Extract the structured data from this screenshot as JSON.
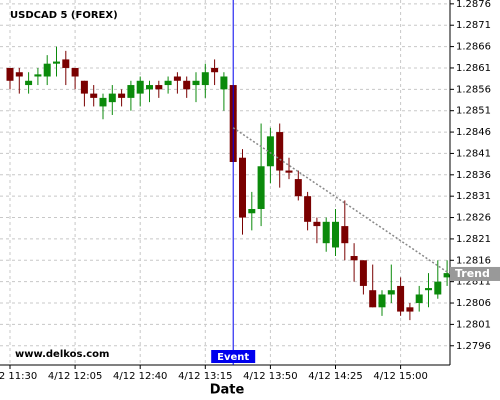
{
  "chart_data": {
    "type": "candlestick",
    "title": "USDCAD 5 (FOREX)",
    "watermark": "www.delkos.com",
    "x_label": "Date",
    "categories": [
      "4/12 11:30",
      null,
      null,
      null,
      null,
      null,
      null,
      "4/12 12:05",
      null,
      null,
      null,
      null,
      null,
      null,
      "4/12 12:40",
      null,
      null,
      null,
      null,
      null,
      null,
      "4/12 13:15",
      null,
      null,
      null,
      null,
      null,
      null,
      "4/12 13:50",
      null,
      null,
      null,
      null,
      null,
      null,
      "4/12 14:25",
      null,
      null,
      null,
      null,
      null,
      null,
      "4/12 15:00",
      null,
      null,
      null,
      null,
      null
    ],
    "open": [
      1.2861,
      1.286,
      1.2857,
      1.2859,
      1.2859,
      1.2862,
      1.2863,
      1.2861,
      1.2858,
      1.2855,
      1.2852,
      1.2853,
      1.2855,
      1.2854,
      1.2855,
      1.2856,
      1.2857,
      1.2857,
      1.2859,
      1.2858,
      1.2857,
      1.2857,
      1.2861,
      1.2856,
      1.2857,
      1.284,
      1.2827,
      1.2828,
      1.2838,
      1.2846,
      1.2837,
      1.2835,
      1.2831,
      1.2825,
      1.282,
      1.2819,
      1.2824,
      1.2817,
      1.2816,
      1.2809,
      1.2805,
      1.2808,
      1.281,
      1.2805,
      1.2806,
      1.2809,
      1.2808,
      1.2812
    ],
    "high": [
      1.2861,
      1.2861,
      1.286,
      1.2861,
      1.2864,
      1.2866,
      1.2865,
      1.2861,
      1.2858,
      1.2857,
      1.2855,
      1.2857,
      1.2856,
      1.2858,
      1.2859,
      1.2858,
      1.2858,
      1.2859,
      1.286,
      1.2859,
      1.286,
      1.2862,
      1.2863,
      1.286,
      1.2857,
      1.2842,
      1.2832,
      1.2848,
      1.2847,
      1.2848,
      1.284,
      1.2837,
      1.2832,
      1.2826,
      1.2826,
      1.2828,
      1.283,
      1.282,
      1.2816,
      1.2815,
      1.2809,
      1.2815,
      1.2812,
      1.2806,
      1.281,
      1.2813,
      1.2816,
      1.2816
    ],
    "low": [
      1.2856,
      1.2855,
      1.2855,
      1.2857,
      1.2857,
      1.2859,
      1.2857,
      1.2856,
      1.2852,
      1.2852,
      1.2849,
      1.285,
      1.2852,
      1.2851,
      1.2852,
      1.2853,
      1.2854,
      1.2855,
      1.2855,
      1.2854,
      1.2853,
      1.2854,
      1.2857,
      1.2851,
      1.2839,
      1.2822,
      1.2823,
      1.2824,
      1.2834,
      1.2833,
      1.2835,
      1.283,
      1.2823,
      1.282,
      1.2818,
      1.2817,
      1.2816,
      1.2811,
      1.2808,
      1.2805,
      1.2803,
      1.2806,
      1.2803,
      1.2802,
      1.2804,
      1.2805,
      1.2807,
      1.281
    ],
    "close": [
      1.2858,
      1.2859,
      1.2858,
      1.28595,
      1.2862,
      1.28625,
      1.2861,
      1.2859,
      1.2855,
      1.2854,
      1.2854,
      1.2855,
      1.2854,
      1.2857,
      1.2858,
      1.2857,
      1.2856,
      1.2858,
      1.2858,
      1.2856,
      1.2858,
      1.286,
      1.286,
      1.2859,
      1.2839,
      1.2826,
      1.2828,
      1.2838,
      1.2845,
      1.2837,
      1.28365,
      1.2831,
      1.2825,
      1.2824,
      1.2825,
      1.2825,
      1.282,
      1.2816,
      1.281,
      1.2805,
      1.2808,
      1.2809,
      1.2804,
      1.2804,
      1.2808,
      1.28095,
      1.2811,
      1.2813
    ],
    "up_color": "#0b8a0b",
    "down_color": "#7a0000",
    "event": {
      "label": "Event",
      "color": "#0000ee"
    },
    "trend": {
      "label": "Trend",
      "values": [
        1.2847,
        1.28128
      ]
    },
    "ylim": [
      1.27915,
      1.28769
    ],
    "yticks": [
      1.2796,
      1.2801,
      1.2806,
      1.2811,
      1.2816,
      1.2821,
      1.2826,
      1.2831,
      1.2836,
      1.2841,
      1.2846,
      1.2851,
      1.2856,
      1.2861,
      1.2866,
      1.2871,
      1.2876
    ],
    "grid": true
  }
}
